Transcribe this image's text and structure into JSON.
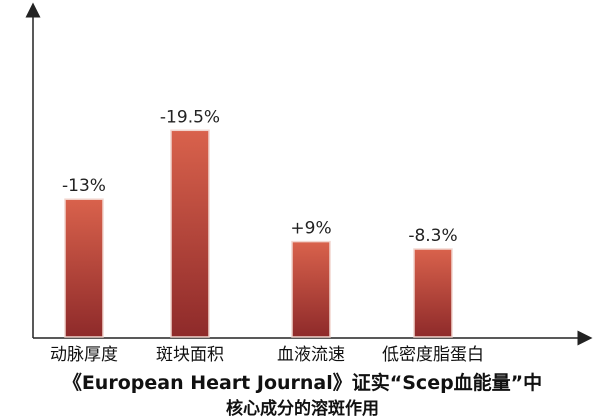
{
  "chart_data": {
    "type": "bar",
    "categories": [
      "动脉厚度",
      "斑块面积",
      "血液流速",
      "低密度脂蛋白"
    ],
    "values": [
      -13,
      -19.5,
      9,
      -8.3
    ],
    "data_labels": [
      "-13%",
      "-19.5%",
      "+9%",
      "-8.3%"
    ],
    "title": "",
    "xlabel": "",
    "ylabel": "",
    "bar_color_top": "#d9624c",
    "bar_color_bottom": "#8e2a2a",
    "grid": false,
    "legend": "none"
  },
  "caption": {
    "line1": "《European Heart Journal》证实“Scep血能量”中",
    "line2": "核心成分的溶斑作用"
  }
}
